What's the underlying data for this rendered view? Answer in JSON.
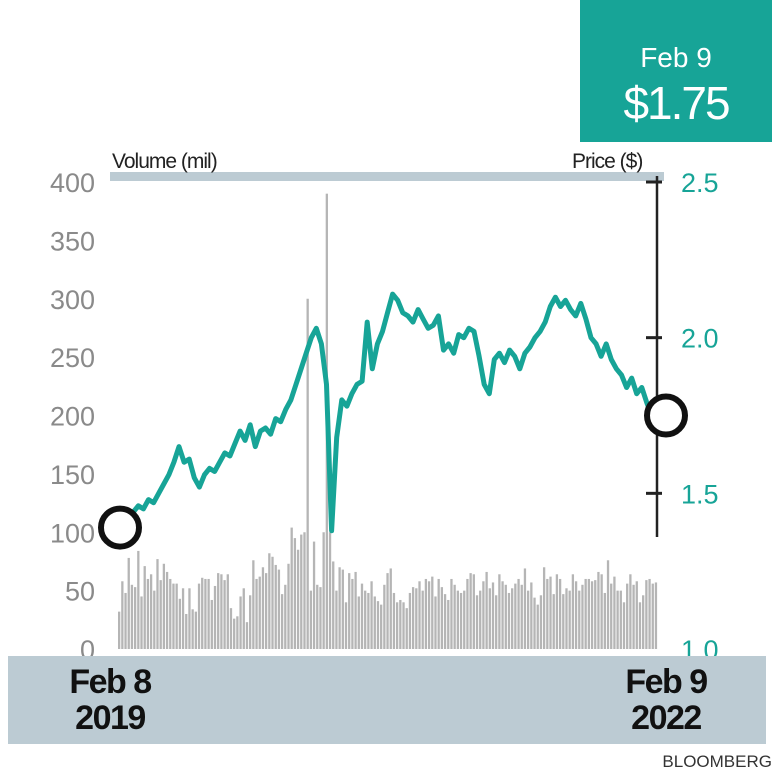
{
  "callout": {
    "date": "Feb 9",
    "value": "$1.75"
  },
  "labels": {
    "volume_title": "Volume (mil)",
    "price_title": "Price ($)",
    "start_line1": "Feb 8",
    "start_line2": "2019",
    "end_line1": "Feb 9",
    "end_line2": "2022",
    "source": "BLOOMBERG"
  },
  "colors": {
    "price_line": "#17a497",
    "volume_bars": "#b5b5b5",
    "left_axis_text": "#8a8a8a",
    "right_axis_text": "#17a497",
    "marker": "#111111"
  },
  "chart_data": {
    "type": "line",
    "x_range": [
      "2019-02-08",
      "2022-02-09"
    ],
    "left_axis": {
      "label": "Volume (mil)",
      "ticks": [
        0,
        50,
        100,
        150,
        200,
        250,
        300,
        350,
        400
      ],
      "ylim": [
        0,
        400
      ]
    },
    "right_axis": {
      "label": "Price ($)",
      "ticks": [
        "1.0",
        "1.5",
        "2.0",
        "2.5"
      ],
      "ylim": [
        1.0,
        2.5
      ]
    },
    "series": [
      {
        "kind": "line",
        "axis": "right",
        "values": [
          1.39,
          1.4,
          1.43,
          1.44,
          1.46,
          1.45,
          1.48,
          1.47,
          1.5,
          1.53,
          1.56,
          1.6,
          1.65,
          1.6,
          1.61,
          1.55,
          1.52,
          1.56,
          1.58,
          1.57,
          1.6,
          1.63,
          1.62,
          1.66,
          1.7,
          1.67,
          1.72,
          1.65,
          1.7,
          1.71,
          1.69,
          1.74,
          1.73,
          1.77,
          1.8,
          1.85,
          1.9,
          1.95,
          2.0,
          2.03,
          1.98,
          1.85,
          1.38,
          1.68,
          1.8,
          1.78,
          1.82,
          1.85,
          1.86,
          2.05,
          1.9,
          1.98,
          2.02,
          2.08,
          2.14,
          2.12,
          2.08,
          2.07,
          2.05,
          2.09,
          2.06,
          2.03,
          2.04,
          2.07,
          1.96,
          1.98,
          1.95,
          2.01,
          2.0,
          2.03,
          2.02,
          1.94,
          1.85,
          1.82,
          1.93,
          1.95,
          1.92,
          1.96,
          1.94,
          1.9,
          1.95,
          1.97,
          2.0,
          2.02,
          2.05,
          2.1,
          2.13,
          2.1,
          2.12,
          2.09,
          2.07,
          2.11,
          2.06,
          2.0,
          1.98,
          1.94,
          1.98,
          1.93,
          1.9,
          1.88,
          1.84,
          1.87,
          1.82,
          1.84,
          1.79,
          1.75
        ]
      },
      {
        "kind": "bar",
        "axis": "left",
        "values": [
          32,
          58,
          48,
          78,
          55,
          53,
          84,
          45,
          71,
          60,
          64,
          50,
          77,
          59,
          73,
          66,
          60,
          56,
          56,
          43,
          52,
          30,
          52,
          34,
          32,
          56,
          61,
          60,
          60,
          42,
          54,
          65,
          64,
          59,
          64,
          35,
          26,
          28,
          45,
          52,
          23,
          46,
          76,
          60,
          62,
          70,
          65,
          82,
          79,
          72,
          68,
          47,
          55,
          73,
          104,
          95,
          85,
          98,
          100,
          300,
          50,
          92,
          55,
          53,
          100,
          390,
          100,
          75,
          50,
          70,
          68,
          40,
          65,
          60,
          66,
          45,
          56,
          50,
          48,
          58,
          45,
          41,
          38,
          55,
          65,
          69,
          48,
          40,
          42,
          40,
          35,
          48,
          53,
          52,
          58,
          50,
          60,
          58,
          62,
          45,
          60,
          53,
          47,
          42,
          60,
          55,
          50,
          48,
          50,
          60,
          65,
          64,
          46,
          50,
          58,
          66,
          52,
          57,
          46,
          64,
          58,
          55,
          48,
          52,
          56,
          60,
          55,
          69,
          50,
          57,
          44,
          38,
          46,
          70,
          60,
          62,
          47,
          64,
          60,
          47,
          52,
          50,
          64,
          58,
          50,
          55,
          60,
          60,
          58,
          59,
          66,
          64,
          48,
          76,
          56,
          62,
          50,
          50,
          40,
          56,
          64,
          55,
          58,
          40,
          46,
          59,
          60,
          56,
          57
        ]
      }
    ],
    "annotations": [
      {
        "date": "2019-02-08",
        "price": 1.39,
        "marker": "circle"
      },
      {
        "date": "2022-02-09",
        "price": 1.75,
        "marker": "circle",
        "label": "$1.75"
      }
    ]
  }
}
